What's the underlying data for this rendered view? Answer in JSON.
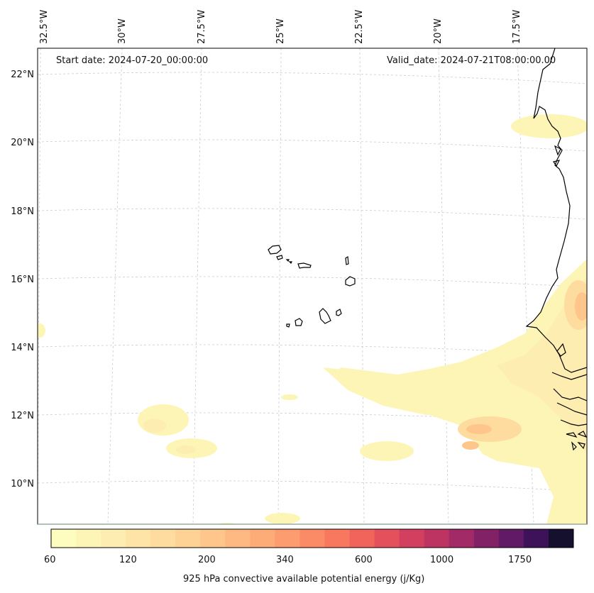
{
  "map": {
    "start_date": "Start date: 2024-07-20_00:00:00",
    "valid_date": "Valid_date: 2024-07-21T08:00:00.00",
    "lon_labels": [
      "32.5°W",
      "30°W",
      "27.5°W",
      "25°W",
      "22.5°W",
      "20°W",
      "17.5°W"
    ],
    "lat_labels": [
      "22°N",
      "20°N",
      "18°N",
      "16°N",
      "14°N",
      "12°N",
      "10°N"
    ],
    "land_color": "#000000",
    "grid_color": "#cccccc"
  },
  "colorbar": {
    "label": "925 hPa convective available potential energy (j/Kg)",
    "tick_labels": [
      "60",
      "120",
      "200",
      "340",
      "600",
      "1000",
      "1750"
    ],
    "colors": [
      "#fcfdbf",
      "#fdf5b6",
      "#feedb0",
      "#fee4a7",
      "#fedb9e",
      "#fed195",
      "#fec68b",
      "#feb982",
      "#fdac78",
      "#fd9c6f",
      "#fb8a66",
      "#f7785f",
      "#f0645c",
      "#e4515d",
      "#d3405f",
      "#bd3463",
      "#a22a67",
      "#832167",
      "#611a66",
      "#3d1258",
      "#14102e"
    ]
  }
}
